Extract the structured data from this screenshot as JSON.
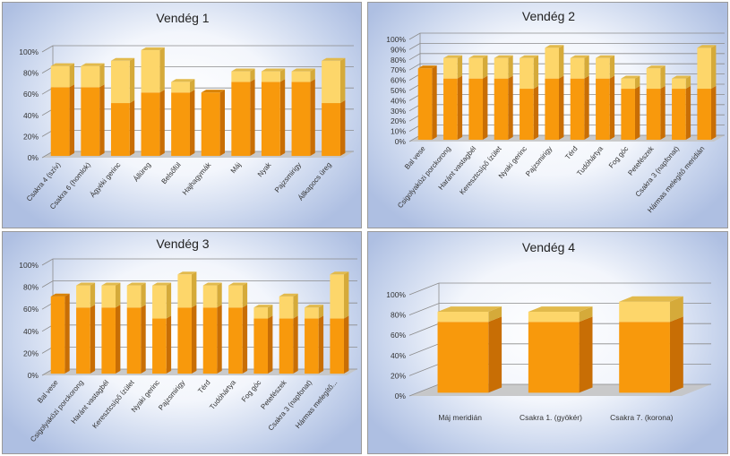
{
  "colors": {
    "base_front": "#F8990C",
    "base_side": "#C86E05",
    "base_top": "#D98306",
    "cap_front": "#FDD66A",
    "cap_side": "#D5AA3A",
    "cap_top": "#E2BA4C",
    "grid": "#8c8c8c",
    "floor": "#c4c4c4"
  },
  "chart_data": [
    {
      "type": "bar",
      "title": "Vendég 1",
      "stacked": true,
      "ylim": [
        0,
        100
      ],
      "yticks": [
        "0%",
        "20%",
        "40%",
        "60%",
        "80%",
        "100%"
      ],
      "categories": [
        "Csakra 4 (szív)",
        "Csakra 6 (homlok)",
        "Ágyéki gerinc",
        "Állüreg",
        "Belsőfül",
        "Hajhagymák",
        "Máj",
        "Nyak",
        "Pajzsmirigy",
        "Állkapocs üreg"
      ],
      "series": [
        {
          "values": [
            65,
            65,
            50,
            60,
            60,
            60,
            70,
            70,
            70,
            50
          ]
        },
        {
          "values": [
            20,
            20,
            40,
            40,
            10,
            0,
            10,
            10,
            10,
            40
          ]
        }
      ]
    },
    {
      "type": "bar",
      "title": "Vendég 2",
      "stacked": true,
      "ylim": [
        0,
        100
      ],
      "yticks": [
        "0%",
        "10%",
        "20%",
        "30%",
        "40%",
        "50%",
        "60%",
        "70%",
        "80%",
        "90%",
        "100%"
      ],
      "categories": [
        "Bal vese",
        "Csigolyaközi porckorong",
        "Haránt vastagbél",
        "Keresztcsípő ízület",
        "Nyaki gerinc",
        "Pajzsmirigy",
        "Térd",
        "Tudóhártya",
        "Fog góc",
        "Petefészek",
        "Csakra 3 (napfonat)",
        "Hármas melegítő meridián"
      ],
      "series": [
        {
          "values": [
            70,
            60,
            60,
            60,
            50,
            60,
            60,
            60,
            50,
            50,
            50,
            50
          ]
        },
        {
          "values": [
            0,
            20,
            20,
            20,
            30,
            30,
            20,
            20,
            10,
            20,
            10,
            40
          ]
        }
      ]
    },
    {
      "type": "bar",
      "title": "Vendég 3",
      "stacked": true,
      "ylim": [
        0,
        100
      ],
      "yticks": [
        "0%",
        "20%",
        "40%",
        "60%",
        "80%",
        "100%"
      ],
      "categories": [
        "Bal vese",
        "Csigolyaközi porckorong",
        "Haránt vastagbél",
        "Keresztcsípő ízület",
        "Nyaki gerinc",
        "Pajzsmirigy",
        "Térd",
        "Tudóhártya",
        "Fog góc",
        "Petefészek",
        "Csakra 3 (napfonat)",
        "Hármas melegítő..."
      ],
      "series": [
        {
          "values": [
            70,
            60,
            60,
            60,
            50,
            60,
            60,
            60,
            50,
            50,
            50,
            50
          ]
        },
        {
          "values": [
            0,
            20,
            20,
            20,
            30,
            30,
            20,
            20,
            10,
            20,
            10,
            40
          ]
        }
      ]
    },
    {
      "type": "bar",
      "title": "Vendég 4",
      "stacked": true,
      "ylim": [
        0,
        100
      ],
      "yticks": [
        "0%",
        "20%",
        "40%",
        "60%",
        "80%",
        "100%"
      ],
      "categories": [
        "Máj meridián",
        "Csakra 1. (gyökér)",
        "Csakra 7. (korona)"
      ],
      "series": [
        {
          "values": [
            70,
            70,
            70
          ]
        },
        {
          "values": [
            10,
            10,
            20
          ]
        }
      ]
    }
  ]
}
